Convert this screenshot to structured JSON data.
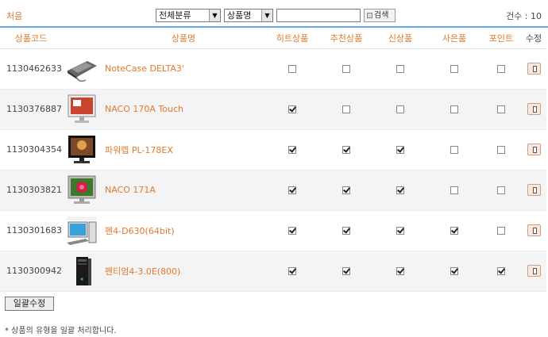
{
  "header": {
    "home_label": "처음",
    "category_select": "전체분류",
    "field_select": "상품명",
    "search_placeholder": "",
    "search_button": "검색",
    "count_label": "건수 : 10"
  },
  "table": {
    "columns": [
      "상품코드",
      "상품명",
      "히트상품",
      "추천상품",
      "신상품",
      "사은품",
      "포인트",
      "수정"
    ],
    "rows": [
      {
        "code": "1130462633",
        "name": "NoteCase DELTA3'",
        "image": "laptop-thumb",
        "hit": false,
        "recommend": false,
        "new": false,
        "gift": false,
        "point": false
      },
      {
        "code": "1130376887",
        "name": "NACO 170A Touch",
        "image": "monitor-touch-thumb",
        "hit": true,
        "recommend": false,
        "new": false,
        "gift": false,
        "point": false
      },
      {
        "code": "1130304354",
        "name": "파워렙 PL-178EX",
        "image": "monitor-black-thumb",
        "hit": true,
        "recommend": true,
        "new": true,
        "gift": false,
        "point": false
      },
      {
        "code": "1130303821",
        "name": "NACO 171A",
        "image": "monitor-flower-thumb",
        "hit": true,
        "recommend": true,
        "new": true,
        "gift": false,
        "point": false
      },
      {
        "code": "1130301683",
        "name": "펜4-D630(64bit)",
        "image": "pc-set-thumb",
        "hit": true,
        "recommend": true,
        "new": true,
        "gift": true,
        "point": false
      },
      {
        "code": "1130300942",
        "name": "펜티엄4-3.0E(800)",
        "image": "pc-tower-thumb",
        "hit": true,
        "recommend": true,
        "new": true,
        "gift": true,
        "point": true
      }
    ]
  },
  "footer": {
    "bulk_edit_button": "일괄수정",
    "note": "* 상품의 유형을 일괄 처리합니다."
  },
  "colors": {
    "accent": "#e07a2e",
    "rule": "#6aa7dc",
    "alt_row": "#f4f4f4"
  }
}
